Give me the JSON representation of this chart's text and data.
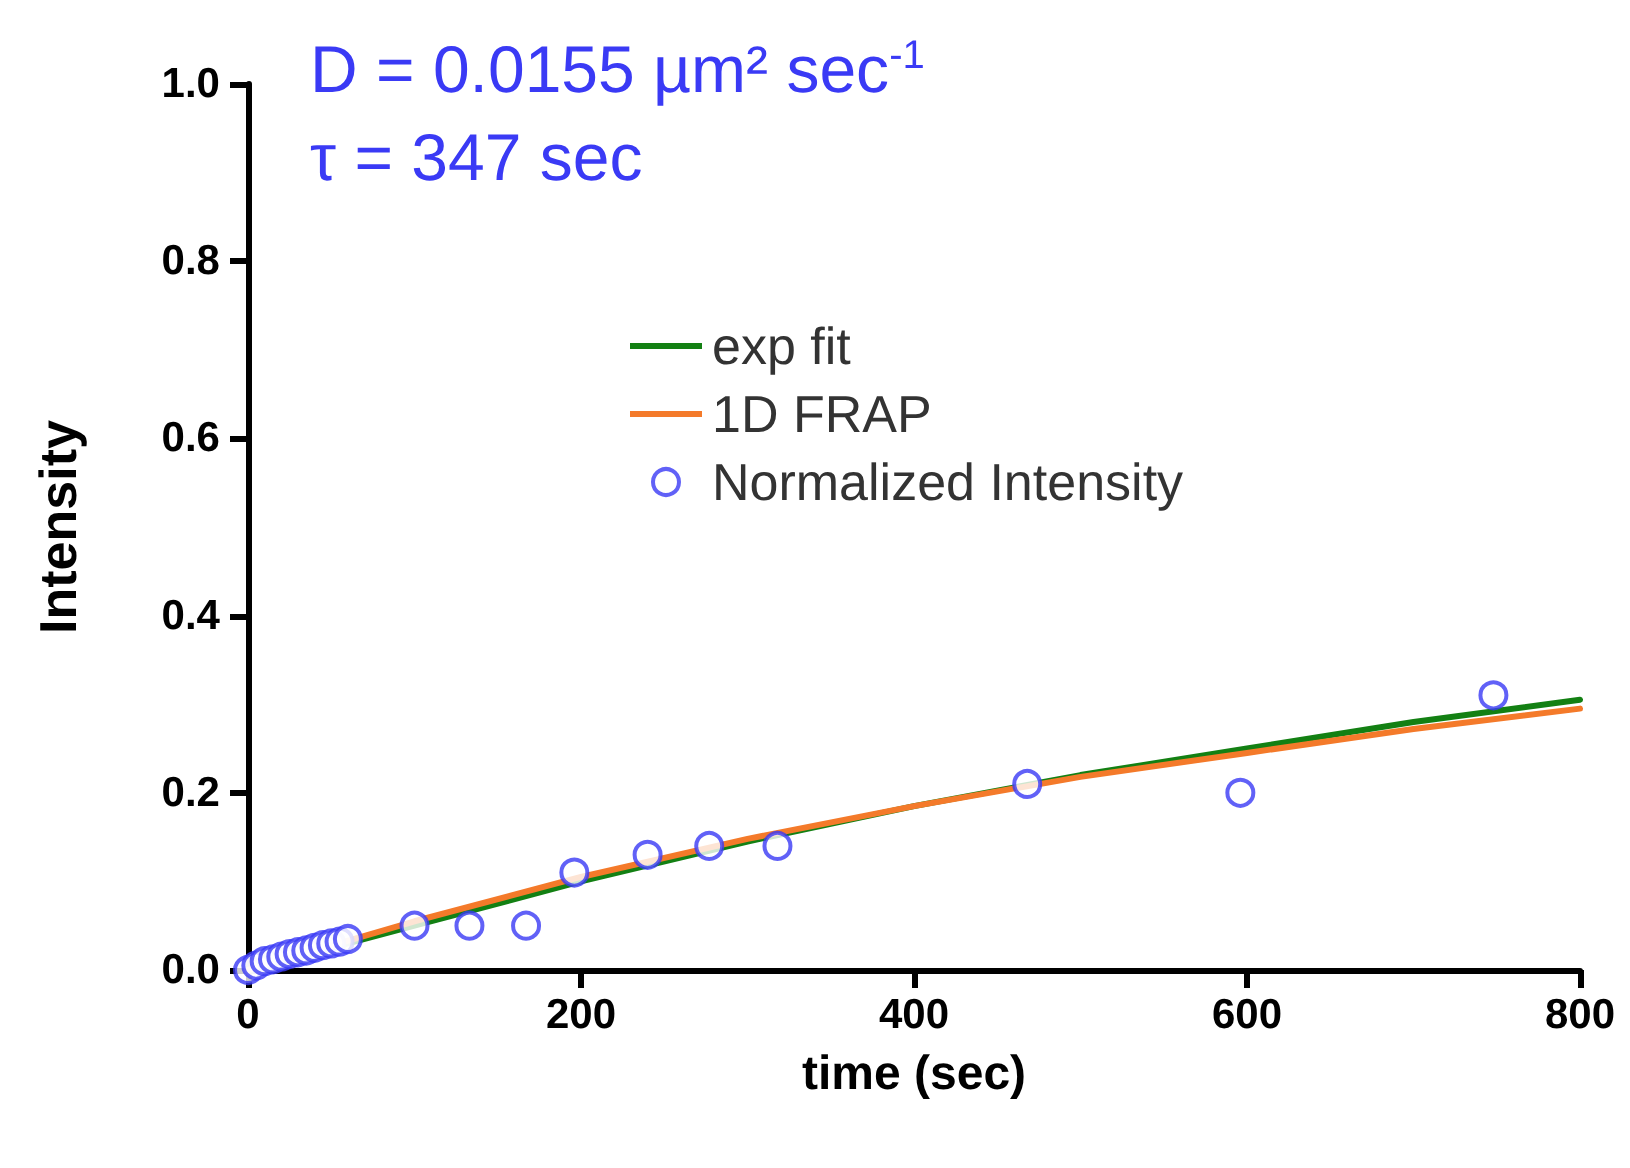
{
  "chart_data": {
    "type": "scatter",
    "xlabel": "time (sec)",
    "ylabel": "Intensity",
    "annotations": [
      "D = 0.0155 µm² sec$^{-1}$",
      "τ = 347 sec"
    ],
    "xlim": [
      0,
      800
    ],
    "xticks": [
      0,
      200,
      400,
      600,
      800
    ],
    "ylim": [
      0,
      1
    ],
    "yticks": [
      {
        "value": 0,
        "label": "0.0"
      },
      {
        "value": 0.2,
        "label": "0.2"
      },
      {
        "value": 0.4,
        "label": "0.4"
      },
      {
        "value": 0.6,
        "label": "0.6"
      },
      {
        "value": 0.8,
        "label": "0.8"
      },
      {
        "value": 1,
        "label": "1.0"
      }
    ],
    "grid": false,
    "legend": "right",
    "series": [
      {
        "name": "exp fit",
        "type": "line",
        "color": "#138013",
        "marker": "none",
        "line_style": "solid",
        "x": [
          0,
          100,
          200,
          300,
          400,
          500,
          600,
          700,
          800
        ],
        "values": [
          0,
          0.05,
          0.1,
          0.145,
          0.185,
          0.22,
          0.25,
          0.28,
          0.305
        ]
      },
      {
        "name": "1D FRAP",
        "type": "line",
        "color": "#f47a2a",
        "marker": "none",
        "line_style": "solid",
        "x": [
          0,
          100,
          200,
          300,
          400,
          500,
          600,
          700,
          800
        ],
        "values": [
          0,
          0.055,
          0.105,
          0.148,
          0.185,
          0.218,
          0.245,
          0.272,
          0.295
        ]
      },
      {
        "name": "Normalized Intensity",
        "color": "#3a3af5",
        "marker": "circle",
        "x": [
          0,
          5,
          10,
          15,
          20,
          25,
          30,
          35,
          40,
          45,
          50,
          55,
          60,
          100,
          133,
          167,
          196,
          240,
          277,
          318,
          468,
          596,
          748
        ],
        "values": [
          0,
          0.005,
          0.01,
          0.012,
          0.015,
          0.018,
          0.02,
          0.022,
          0.025,
          0.028,
          0.03,
          0.032,
          0.035,
          0.05,
          0.05,
          0.05,
          0.11,
          0.13,
          0.14,
          0.14,
          0.21,
          0.2,
          0.31
        ]
      }
    ]
  }
}
